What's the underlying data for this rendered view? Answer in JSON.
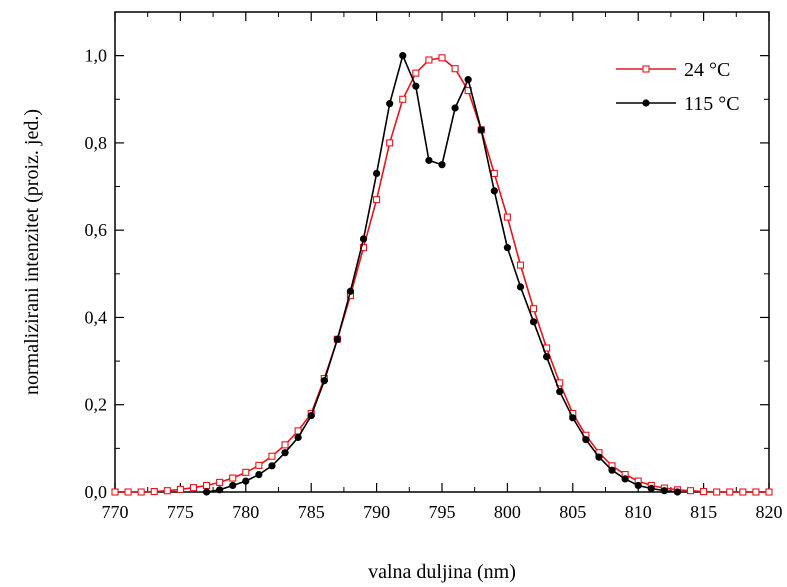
{
  "chart_data": {
    "type": "line",
    "xlabel": "valna duljina (nm)",
    "ylabel": "normalizirani intenzitet (proiz. jed.)",
    "xlim": [
      770,
      820
    ],
    "ylim": [
      0,
      1.1
    ],
    "x_ticks": [
      770,
      775,
      780,
      785,
      790,
      795,
      800,
      805,
      810,
      815,
      820
    ],
    "x_tick_labels": [
      "770",
      "775",
      "780",
      "785",
      "790",
      "795",
      "800",
      "805",
      "810",
      "815",
      "820"
    ],
    "y_ticks": [
      0,
      0.2,
      0.4,
      0.6,
      0.8,
      1.0
    ],
    "y_tick_labels": [
      "0,0",
      "0,2",
      "0,4",
      "0,6",
      "0,8",
      "1,0"
    ],
    "legend_position": "top-right",
    "grid": false,
    "series": [
      {
        "name": "24 °C",
        "color": "#e8141c",
        "marker": "open-square",
        "x": [
          770,
          771,
          772,
          773,
          774,
          775,
          776,
          777,
          778,
          779,
          780,
          781,
          782,
          783,
          784,
          785,
          786,
          787,
          788,
          789,
          790,
          791,
          792,
          793,
          794,
          795,
          796,
          797,
          798,
          799,
          800,
          801,
          802,
          803,
          804,
          805,
          806,
          807,
          808,
          809,
          810,
          811,
          812,
          813,
          814,
          815,
          816,
          817,
          818,
          819,
          820
        ],
        "y": [
          0.0,
          0.0,
          0.0,
          0.001,
          0.003,
          0.006,
          0.01,
          0.015,
          0.022,
          0.032,
          0.045,
          0.061,
          0.082,
          0.108,
          0.14,
          0.18,
          0.26,
          0.35,
          0.45,
          0.56,
          0.67,
          0.8,
          0.9,
          0.96,
          0.99,
          0.995,
          0.97,
          0.92,
          0.83,
          0.73,
          0.63,
          0.52,
          0.42,
          0.33,
          0.25,
          0.18,
          0.13,
          0.09,
          0.06,
          0.04,
          0.025,
          0.015,
          0.009,
          0.005,
          0.003,
          0.001,
          0.0,
          0.0,
          0.0,
          0.0,
          0.0
        ]
      },
      {
        "name": "115 °C",
        "color": "#000000",
        "marker": "filled-circle",
        "x": [
          777,
          778,
          779,
          780,
          781,
          782,
          783,
          784,
          785,
          786,
          787,
          788,
          789,
          790,
          791,
          792,
          793,
          794,
          795,
          796,
          797,
          798,
          799,
          800,
          801,
          802,
          803,
          804,
          805,
          806,
          807,
          808,
          809,
          810,
          811,
          812,
          813
        ],
        "y": [
          0.0,
          0.005,
          0.015,
          0.025,
          0.04,
          0.06,
          0.09,
          0.125,
          0.175,
          0.255,
          0.35,
          0.46,
          0.58,
          0.73,
          0.89,
          1.0,
          0.93,
          0.76,
          0.75,
          0.88,
          0.945,
          0.83,
          0.69,
          0.56,
          0.47,
          0.39,
          0.31,
          0.23,
          0.17,
          0.12,
          0.08,
          0.05,
          0.03,
          0.015,
          0.008,
          0.003,
          0.0
        ]
      }
    ]
  }
}
